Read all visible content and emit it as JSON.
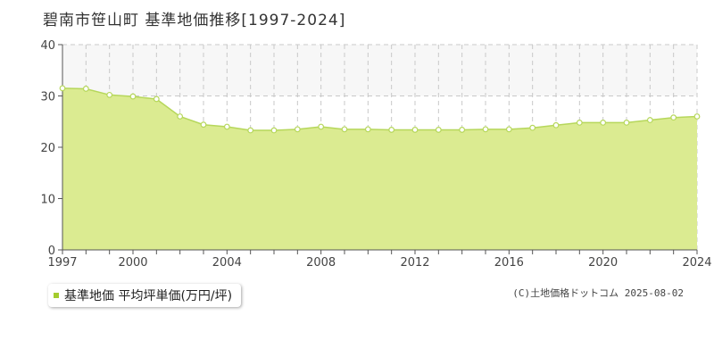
{
  "title": "碧南市笹山町 基準地価推移[1997-2024]",
  "legend": {
    "label": "基準地価 平均坪単価(万円/坪)"
  },
  "credit": "(C)土地価格ドットコム 2025-08-02",
  "colors": {
    "area_fill": "#dbeb91",
    "line": "#b6d75b",
    "marker_fill": "#ffffff",
    "swatch": "#a4cc2e",
    "upper_band": "#f7f7f7",
    "grid": "#c8c8c8"
  },
  "chart_data": {
    "type": "area",
    "title": "碧南市笹山町 基準地価推移[1997-2024]",
    "xlabel": "",
    "ylabel": "",
    "xlim": [
      1997,
      2024
    ],
    "ylim": [
      0,
      40
    ],
    "x_ticks": [
      1997,
      2000,
      2004,
      2008,
      2012,
      2016,
      2020,
      2024
    ],
    "y_ticks": [
      0,
      10,
      20,
      30,
      40
    ],
    "grid": true,
    "legend_position": "bottom-left",
    "series": [
      {
        "name": "基準地価 平均坪単価(万円/坪)",
        "x": [
          1997,
          1998,
          1999,
          2000,
          2001,
          2002,
          2003,
          2004,
          2005,
          2006,
          2007,
          2008,
          2009,
          2010,
          2011,
          2012,
          2013,
          2014,
          2015,
          2016,
          2017,
          2018,
          2019,
          2020,
          2021,
          2022,
          2023,
          2024
        ],
        "values": [
          31.5,
          31.4,
          30.2,
          29.9,
          29.4,
          26.0,
          24.4,
          24.0,
          23.3,
          23.3,
          23.5,
          24.0,
          23.5,
          23.5,
          23.4,
          23.4,
          23.4,
          23.4,
          23.5,
          23.5,
          23.8,
          24.3,
          24.8,
          24.8,
          24.8,
          25.3,
          25.8,
          26.0
        ]
      }
    ]
  }
}
